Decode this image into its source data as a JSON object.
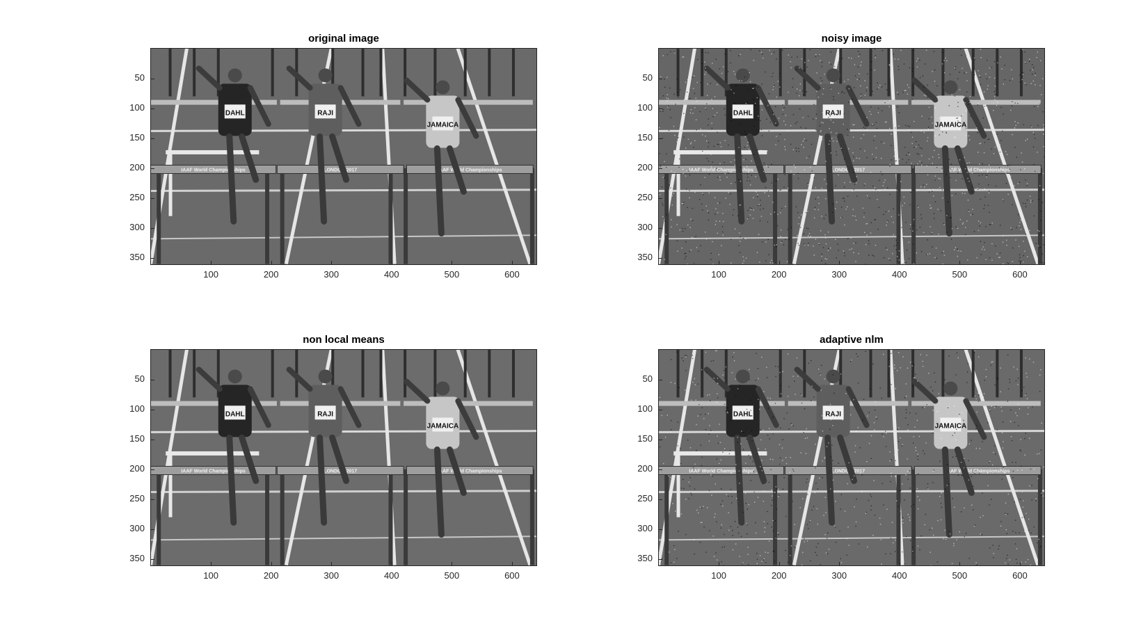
{
  "figure": {
    "panels": [
      {
        "title": "original image"
      },
      {
        "title": "noisy image"
      },
      {
        "title": "non local means"
      },
      {
        "title": "adaptive nlm"
      }
    ],
    "yticks": [
      "50",
      "100",
      "150",
      "200",
      "250",
      "300",
      "350"
    ],
    "xticks": [
      "100",
      "200",
      "300",
      "400",
      "500",
      "600"
    ],
    "y_tick_values": [
      50,
      100,
      150,
      200,
      250,
      300,
      350
    ],
    "x_tick_values": [
      100,
      200,
      300,
      400,
      500,
      600
    ],
    "image_extent": {
      "x": [
        0.5,
        640.5
      ],
      "y": [
        0.5,
        360.5
      ]
    },
    "image_text": {
      "bibs": [
        "DAHL",
        "RAJI",
        "JAMAICA"
      ],
      "banner_left": "IAAF World Championships",
      "banner_center": "LONDON 2017",
      "banner_right": "IAAF World Championships"
    },
    "colormap": "gray"
  }
}
